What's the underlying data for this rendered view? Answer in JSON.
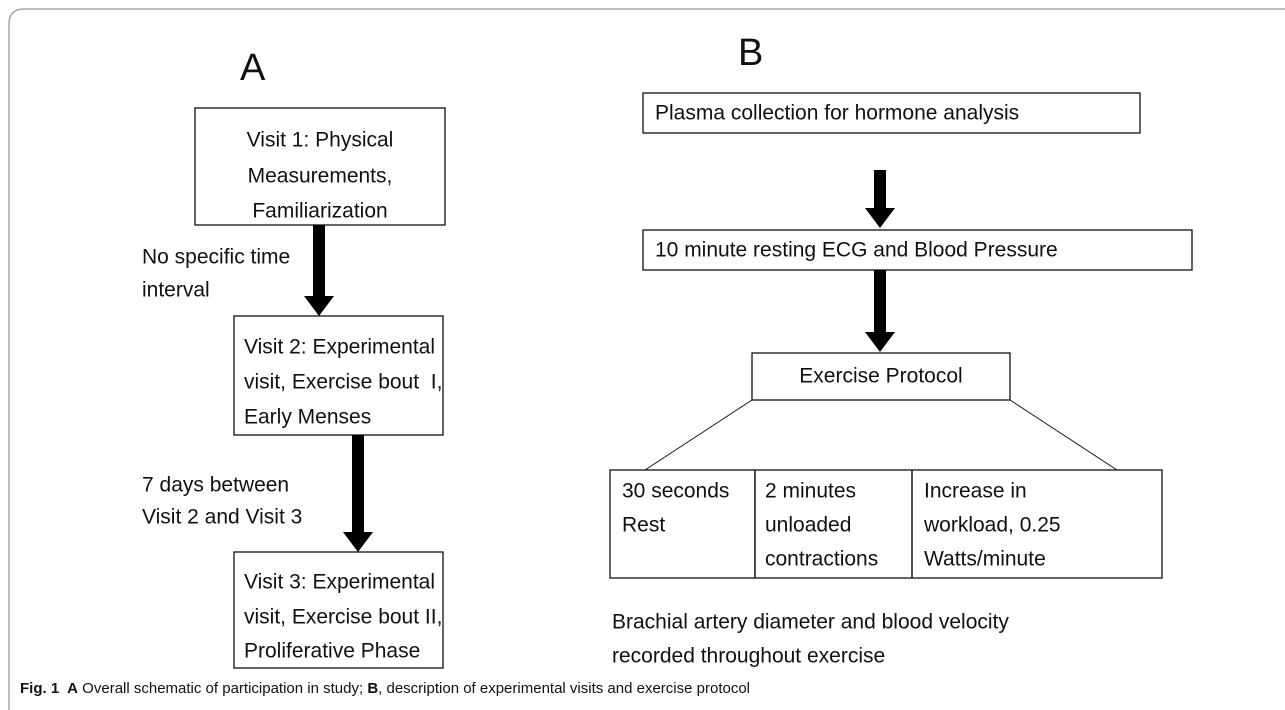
{
  "panel_a": {
    "label": "A",
    "boxes": [
      {
        "lines": [
          "Visit 1: Physical",
          "Measurements,",
          "Familiarization"
        ]
      },
      {
        "lines": [
          "Visit 2: Experimental",
          "visit, Exercise bout  I,",
          "Early Menses"
        ]
      },
      {
        "lines": [
          "Visit 3: Experimental",
          "visit, Exercise bout II,",
          "Proliferative Phase"
        ]
      }
    ],
    "notes": [
      {
        "lines": [
          "No specific time",
          "interval"
        ]
      },
      {
        "lines": [
          "7 days between",
          "Visit 2 and Visit 3"
        ]
      }
    ]
  },
  "panel_b": {
    "label": "B",
    "steps": [
      "Plasma collection for hormone analysis",
      "10 minute resting ECG and Blood Pressure",
      "Exercise Protocol"
    ],
    "phases": [
      {
        "lines": [
          "30 seconds",
          "Rest"
        ]
      },
      {
        "lines": [
          "2 minutes",
          "unloaded",
          "contractions"
        ]
      },
      {
        "lines": [
          "Increase in",
          "workload, 0.25",
          "Watts/minute"
        ]
      }
    ],
    "footnote": [
      "Brachial artery diameter and blood velocity",
      "recorded throughout exercise"
    ]
  },
  "caption": {
    "figure": "Fig. 1",
    "a_label": "A",
    "a_text": " Overall schematic of participation in study; ",
    "b_label": "B",
    "b_text": ", description of experimental visits and exercise protocol"
  }
}
